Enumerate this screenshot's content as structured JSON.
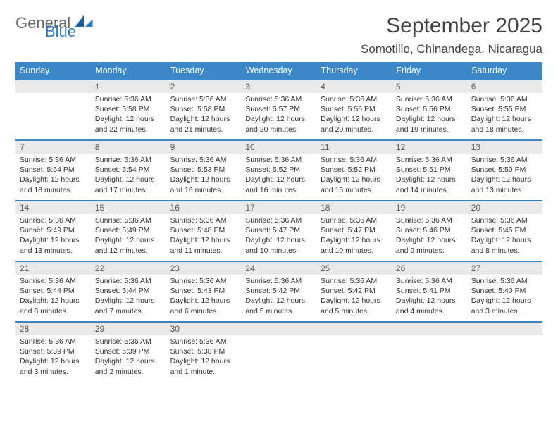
{
  "logo": {
    "word1": "General",
    "word2": "Blue"
  },
  "title": "September 2025",
  "location": "Somotillo, Chinandega, Nicaragua",
  "columns": [
    "Sunday",
    "Monday",
    "Tuesday",
    "Wednesday",
    "Thursday",
    "Friday",
    "Saturday"
  ],
  "colors": {
    "header_bg": "#3b87c8",
    "header_text": "#ffffff",
    "daynum_bg": "#e9e9e9",
    "rule": "#3b87c8",
    "logo_gray": "#6b6b6b",
    "logo_blue": "#2b7cc4",
    "text": "#333333"
  },
  "weeks": [
    [
      {
        "n": "",
        "lines": []
      },
      {
        "n": "1",
        "lines": [
          "Sunrise: 5:36 AM",
          "Sunset: 5:58 PM",
          "Daylight: 12 hours and 22 minutes."
        ]
      },
      {
        "n": "2",
        "lines": [
          "Sunrise: 5:36 AM",
          "Sunset: 5:58 PM",
          "Daylight: 12 hours and 21 minutes."
        ]
      },
      {
        "n": "3",
        "lines": [
          "Sunrise: 5:36 AM",
          "Sunset: 5:57 PM",
          "Daylight: 12 hours and 20 minutes."
        ]
      },
      {
        "n": "4",
        "lines": [
          "Sunrise: 5:36 AM",
          "Sunset: 5:56 PM",
          "Daylight: 12 hours and 20 minutes."
        ]
      },
      {
        "n": "5",
        "lines": [
          "Sunrise: 5:36 AM",
          "Sunset: 5:56 PM",
          "Daylight: 12 hours and 19 minutes."
        ]
      },
      {
        "n": "6",
        "lines": [
          "Sunrise: 5:36 AM",
          "Sunset: 5:55 PM",
          "Daylight: 12 hours and 18 minutes."
        ]
      }
    ],
    [
      {
        "n": "7",
        "lines": [
          "Sunrise: 5:36 AM",
          "Sunset: 5:54 PM",
          "Daylight: 12 hours and 18 minutes."
        ]
      },
      {
        "n": "8",
        "lines": [
          "Sunrise: 5:36 AM",
          "Sunset: 5:54 PM",
          "Daylight: 12 hours and 17 minutes."
        ]
      },
      {
        "n": "9",
        "lines": [
          "Sunrise: 5:36 AM",
          "Sunset: 5:53 PM",
          "Daylight: 12 hours and 16 minutes."
        ]
      },
      {
        "n": "10",
        "lines": [
          "Sunrise: 5:36 AM",
          "Sunset: 5:52 PM",
          "Daylight: 12 hours and 16 minutes."
        ]
      },
      {
        "n": "11",
        "lines": [
          "Sunrise: 5:36 AM",
          "Sunset: 5:52 PM",
          "Daylight: 12 hours and 15 minutes."
        ]
      },
      {
        "n": "12",
        "lines": [
          "Sunrise: 5:36 AM",
          "Sunset: 5:51 PM",
          "Daylight: 12 hours and 14 minutes."
        ]
      },
      {
        "n": "13",
        "lines": [
          "Sunrise: 5:36 AM",
          "Sunset: 5:50 PM",
          "Daylight: 12 hours and 13 minutes."
        ]
      }
    ],
    [
      {
        "n": "14",
        "lines": [
          "Sunrise: 5:36 AM",
          "Sunset: 5:49 PM",
          "Daylight: 12 hours and 13 minutes."
        ]
      },
      {
        "n": "15",
        "lines": [
          "Sunrise: 5:36 AM",
          "Sunset: 5:49 PM",
          "Daylight: 12 hours and 12 minutes."
        ]
      },
      {
        "n": "16",
        "lines": [
          "Sunrise: 5:36 AM",
          "Sunset: 5:48 PM",
          "Daylight: 12 hours and 11 minutes."
        ]
      },
      {
        "n": "17",
        "lines": [
          "Sunrise: 5:36 AM",
          "Sunset: 5:47 PM",
          "Daylight: 12 hours and 10 minutes."
        ]
      },
      {
        "n": "18",
        "lines": [
          "Sunrise: 5:36 AM",
          "Sunset: 5:47 PM",
          "Daylight: 12 hours and 10 minutes."
        ]
      },
      {
        "n": "19",
        "lines": [
          "Sunrise: 5:36 AM",
          "Sunset: 5:46 PM",
          "Daylight: 12 hours and 9 minutes."
        ]
      },
      {
        "n": "20",
        "lines": [
          "Sunrise: 5:36 AM",
          "Sunset: 5:45 PM",
          "Daylight: 12 hours and 8 minutes."
        ]
      }
    ],
    [
      {
        "n": "21",
        "lines": [
          "Sunrise: 5:36 AM",
          "Sunset: 5:44 PM",
          "Daylight: 12 hours and 8 minutes."
        ]
      },
      {
        "n": "22",
        "lines": [
          "Sunrise: 5:36 AM",
          "Sunset: 5:44 PM",
          "Daylight: 12 hours and 7 minutes."
        ]
      },
      {
        "n": "23",
        "lines": [
          "Sunrise: 5:36 AM",
          "Sunset: 5:43 PM",
          "Daylight: 12 hours and 6 minutes."
        ]
      },
      {
        "n": "24",
        "lines": [
          "Sunrise: 5:36 AM",
          "Sunset: 5:42 PM",
          "Daylight: 12 hours and 5 minutes."
        ]
      },
      {
        "n": "25",
        "lines": [
          "Sunrise: 5:36 AM",
          "Sunset: 5:42 PM",
          "Daylight: 12 hours and 5 minutes."
        ]
      },
      {
        "n": "26",
        "lines": [
          "Sunrise: 5:36 AM",
          "Sunset: 5:41 PM",
          "Daylight: 12 hours and 4 minutes."
        ]
      },
      {
        "n": "27",
        "lines": [
          "Sunrise: 5:36 AM",
          "Sunset: 5:40 PM",
          "Daylight: 12 hours and 3 minutes."
        ]
      }
    ],
    [
      {
        "n": "28",
        "lines": [
          "Sunrise: 5:36 AM",
          "Sunset: 5:39 PM",
          "Daylight: 12 hours and 3 minutes."
        ]
      },
      {
        "n": "29",
        "lines": [
          "Sunrise: 5:36 AM",
          "Sunset: 5:39 PM",
          "Daylight: 12 hours and 2 minutes."
        ]
      },
      {
        "n": "30",
        "lines": [
          "Sunrise: 5:36 AM",
          "Sunset: 5:38 PM",
          "Daylight: 12 hours and 1 minute."
        ]
      },
      {
        "n": "",
        "lines": []
      },
      {
        "n": "",
        "lines": []
      },
      {
        "n": "",
        "lines": []
      },
      {
        "n": "",
        "lines": []
      }
    ]
  ]
}
